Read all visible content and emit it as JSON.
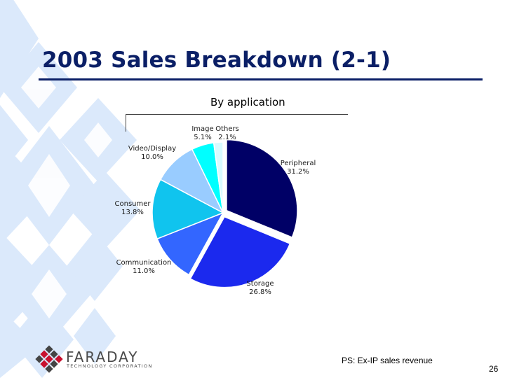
{
  "slide": {
    "title": "2003 Sales Breakdown (2-1)",
    "note": "PS: Ex-IP sales revenue",
    "page_number": "26"
  },
  "logo": {
    "name": "FARADAY",
    "tagline": "TECHNOLOGY CORPORATION"
  },
  "colors": {
    "title": "#0b1f66",
    "deco_diamond": "#dbe9fb"
  },
  "chart_data": {
    "type": "pie",
    "title": "By application",
    "start_angle_deg": 0,
    "direction": "clockwise",
    "exploded_slices": [
      "Peripheral",
      "Storage"
    ],
    "slices": [
      {
        "label": "Peripheral",
        "value": 31.2,
        "value_label": "31.2%",
        "color": "#000066"
      },
      {
        "label": "Storage",
        "value": 26.8,
        "value_label": "26.8%",
        "color": "#1b29ee"
      },
      {
        "label": "Communication",
        "value": 11.0,
        "value_label": "11.0%",
        "color": "#3366ff"
      },
      {
        "label": "Consumer",
        "value": 13.8,
        "value_label": "13.8%",
        "color": "#10c4ee"
      },
      {
        "label": "Video/Display",
        "value": 10.0,
        "value_label": "10.0%",
        "color": "#99ccff"
      },
      {
        "label": "Image",
        "value": 5.1,
        "value_label": "5.1%",
        "color": "#00ffff"
      },
      {
        "label": "Others",
        "value": 2.1,
        "value_label": "2.1%",
        "color": "#d9fbff"
      }
    ]
  }
}
